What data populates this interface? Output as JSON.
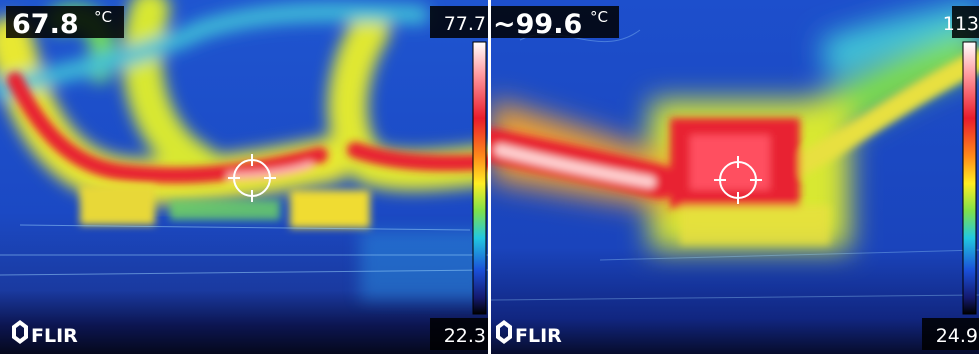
{
  "panels": [
    {
      "spot_temp": "67.8",
      "unit": "°C",
      "scale_max": "77.7",
      "scale_min": "22.3",
      "logo": "FLIR"
    },
    {
      "spot_temp": "~99.6",
      "unit": "°C",
      "scale_max": "113",
      "scale_min": "24.9",
      "logo": "FLIR"
    }
  ]
}
